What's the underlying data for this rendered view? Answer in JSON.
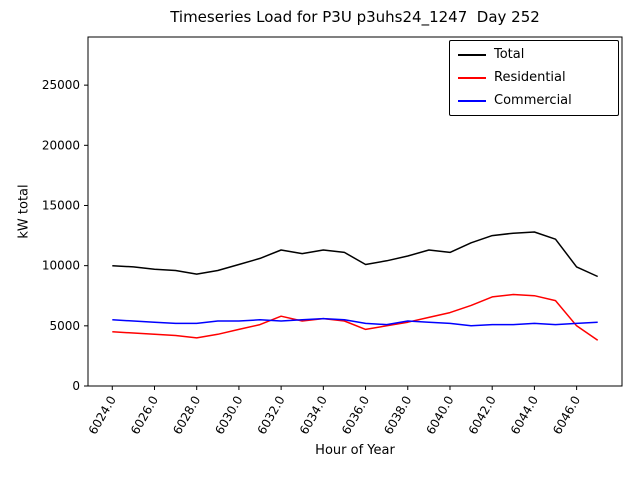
{
  "chart_data": {
    "type": "line",
    "title": "Timeseries Load for P3U p3uhs24_1247  Day 252",
    "xlabel": "Hour of Year",
    "ylabel": "kW total",
    "xlim": [
      6022.85,
      6048.15
    ],
    "ylim": [
      0,
      29000
    ],
    "xticks": [
      6024,
      6026,
      6028,
      6030,
      6032,
      6034,
      6036,
      6038,
      6040,
      6042,
      6044,
      6046
    ],
    "xtick_labels": [
      "6024.0",
      "6026.0",
      "6028.0",
      "6030.0",
      "6032.0",
      "6034.0",
      "6036.0",
      "6038.0",
      "6040.0",
      "6042.0",
      "6044.0",
      "6046.0"
    ],
    "yticks": [
      0,
      5000,
      10000,
      15000,
      20000,
      25000
    ],
    "ytick_labels": [
      "0",
      "5000",
      "10000",
      "15000",
      "20000",
      "25000"
    ],
    "grid": false,
    "legend_position": "upper right",
    "x": [
      6024,
      6025,
      6026,
      6027,
      6028,
      6029,
      6030,
      6031,
      6032,
      6033,
      6034,
      6035,
      6036,
      6037,
      6038,
      6039,
      6040,
      6041,
      6042,
      6043,
      6044,
      6045,
      6046,
      6047
    ],
    "series": [
      {
        "name": "Total",
        "color": "#000000",
        "values": [
          10000,
          9900,
          9700,
          9600,
          9300,
          9600,
          10100,
          10600,
          11300,
          11000,
          11300,
          11100,
          10100,
          10400,
          10800,
          11300,
          11100,
          11900,
          12500,
          12700,
          12800,
          12200,
          9900,
          9100
        ]
      },
      {
        "name": "Residential",
        "color": "#ff0000",
        "values": [
          4500,
          4400,
          4300,
          4200,
          4000,
          4300,
          4700,
          5100,
          5800,
          5400,
          5600,
          5400,
          4700,
          5000,
          5300,
          5700,
          6100,
          6700,
          7400,
          7600,
          7500,
          7100,
          5000,
          3800
        ]
      },
      {
        "name": "Commercial",
        "color": "#0000ff",
        "values": [
          5500,
          5400,
          5300,
          5200,
          5200,
          5400,
          5400,
          5500,
          5400,
          5500,
          5600,
          5500,
          5200,
          5100,
          5400,
          5300,
          5200,
          5000,
          5100,
          5100,
          5200,
          5100,
          5200,
          5300
        ]
      }
    ]
  }
}
